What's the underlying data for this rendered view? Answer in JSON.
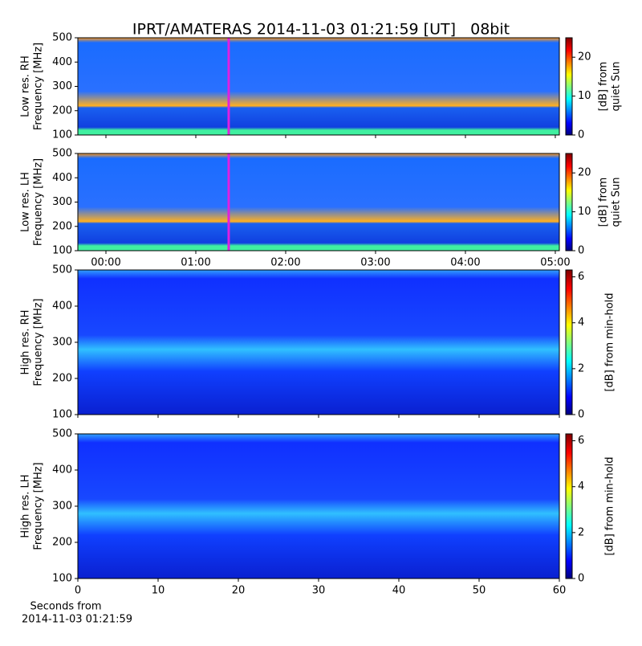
{
  "chart_data": [
    {
      "type": "heatmap",
      "title": "IPRT/AMATERAS 2014-11-03 01:21:59 [UT]   08bit",
      "ylabel": [
        "Low res. RH",
        "Frequency [MHz]"
      ],
      "ylim": [
        100,
        500
      ],
      "yticks": [
        100,
        200,
        300,
        400,
        500
      ],
      "xlim": [
        -0.3125,
        5.045
      ],
      "marker_x": 1.366,
      "marker_color": "#e020e0",
      "colorbar": {
        "label": [
          "[dB] from",
          "quiet Sun"
        ],
        "lim": [
          0,
          25
        ],
        "ticks": [
          0,
          10,
          20
        ]
      },
      "colormap": "jet"
    },
    {
      "type": "heatmap",
      "ylabel": [
        "Low res. LH",
        "Frequency [MHz]"
      ],
      "ylim": [
        100,
        500
      ],
      "yticks": [
        100,
        200,
        300,
        400,
        500
      ],
      "xlim": [
        -0.3125,
        5.045
      ],
      "marker_x": 1.366,
      "marker_color": "#e020e0",
      "xticks": [
        {
          "value": 0,
          "label": "00:00"
        },
        {
          "value": 1,
          "label": "01:00"
        },
        {
          "value": 2,
          "label": "02:00"
        },
        {
          "value": 3,
          "label": "03:00"
        },
        {
          "value": 4,
          "label": "04:00"
        },
        {
          "value": 5,
          "label": "05:00"
        }
      ],
      "colorbar": {
        "label": [
          "[dB] from",
          "quiet Sun"
        ],
        "lim": [
          0,
          25
        ],
        "ticks": [
          0,
          10,
          20
        ]
      },
      "colormap": "jet"
    },
    {
      "type": "heatmap",
      "ylabel": [
        "High res. RH",
        "Frequency [MHz]"
      ],
      "ylim": [
        100,
        500
      ],
      "yticks": [
        100,
        200,
        300,
        400,
        500
      ],
      "xlim": [
        0,
        60
      ],
      "colorbar": {
        "label": [
          "[dB] from min-hold"
        ],
        "lim": [
          0,
          6.3
        ],
        "ticks": [
          0,
          2,
          4,
          6
        ]
      },
      "colormap": "jet"
    },
    {
      "type": "heatmap",
      "ylabel": [
        "High res. LH",
        "Frequency [MHz]"
      ],
      "ylim": [
        100,
        500
      ],
      "yticks": [
        100,
        200,
        300,
        400,
        500
      ],
      "xlim": [
        0,
        60
      ],
      "xticks": [
        0,
        10,
        20,
        30,
        40,
        50,
        60
      ],
      "xlabel": [
        "Seconds from",
        "2014-11-03 01:21:59"
      ],
      "colorbar": {
        "label": [
          "[dB] from min-hold"
        ],
        "lim": [
          0,
          6.3
        ],
        "ticks": [
          0,
          2,
          4,
          6
        ]
      },
      "colormap": "jet"
    }
  ]
}
